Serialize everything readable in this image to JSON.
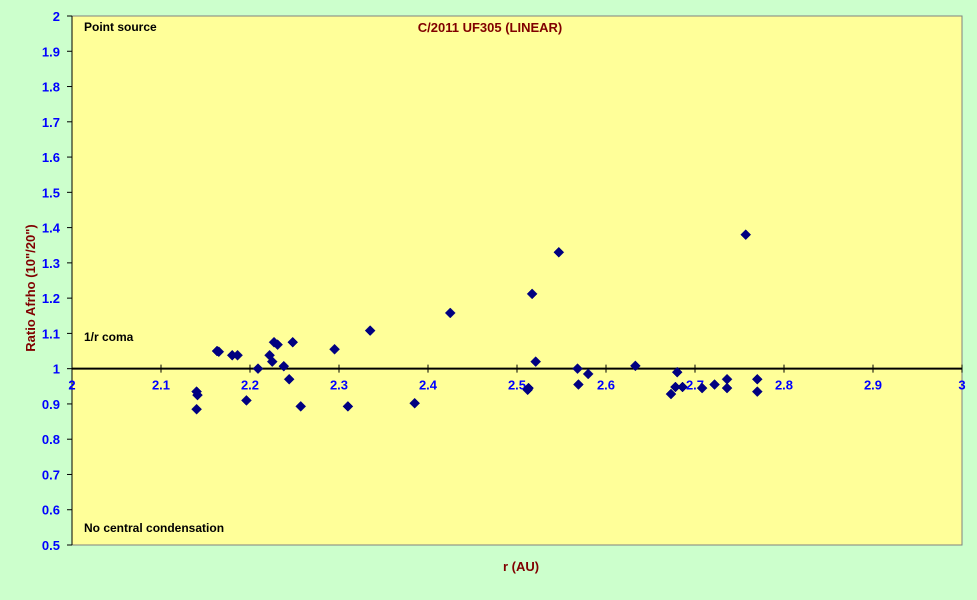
{
  "chart_data": {
    "type": "scatter",
    "title": "C/2011 UF305 (LINEAR)",
    "xlabel": "r (AU)",
    "ylabel": "Ratio Afrho (10\"/20\")",
    "xlim": [
      2,
      3
    ],
    "ylim": [
      0.5,
      2
    ],
    "x_ticks": [
      "2",
      "2.1",
      "2.2",
      "2.3",
      "2.4",
      "2.5",
      "2.6",
      "2.7",
      "2.8",
      "2.9",
      "3"
    ],
    "y_ticks": [
      "2",
      "1.9",
      "1.8",
      "1.7",
      "1.6",
      "1.5",
      "1.4",
      "1.3",
      "1.2",
      "1.1",
      "1",
      "0.9",
      "0.8",
      "0.7",
      "0.6",
      "0.5"
    ],
    "reference_line_y": 1,
    "annotations": {
      "top": "Point source",
      "middle": "1/r coma",
      "bottom": "No central condensation"
    },
    "colors": {
      "plot_bg": "#ffff99",
      "outer_bg": "#ccffcc",
      "marker": "#000080",
      "tick": "#0000ff",
      "title": "#800000"
    },
    "grid": false,
    "points": [
      [
        2.14,
        0.935
      ],
      [
        2.141,
        0.925
      ],
      [
        2.14,
        0.885
      ],
      [
        2.163,
        1.05
      ],
      [
        2.165,
        1.048
      ],
      [
        2.18,
        1.038
      ],
      [
        2.186,
        1.038
      ],
      [
        2.196,
        0.91
      ],
      [
        2.209,
        1.0
      ],
      [
        2.222,
        1.038
      ],
      [
        2.225,
        1.02
      ],
      [
        2.227,
        1.075
      ],
      [
        2.231,
        1.068
      ],
      [
        2.238,
        1.007
      ],
      [
        2.244,
        0.97
      ],
      [
        2.248,
        1.075
      ],
      [
        2.257,
        0.893
      ],
      [
        2.295,
        1.055
      ],
      [
        2.31,
        0.893
      ],
      [
        2.335,
        1.108
      ],
      [
        2.385,
        0.902
      ],
      [
        2.425,
        1.158
      ],
      [
        2.513,
        0.945
      ],
      [
        2.512,
        0.94
      ],
      [
        2.517,
        1.212
      ],
      [
        2.521,
        1.02
      ],
      [
        2.547,
        1.33
      ],
      [
        2.568,
        1.0
      ],
      [
        2.569,
        0.955
      ],
      [
        2.58,
        0.985
      ],
      [
        2.633,
        1.008
      ],
      [
        2.673,
        0.928
      ],
      [
        2.678,
        0.948
      ],
      [
        2.68,
        0.99
      ],
      [
        2.686,
        0.948
      ],
      [
        2.708,
        0.945
      ],
      [
        2.722,
        0.955
      ],
      [
        2.736,
        0.97
      ],
      [
        2.736,
        0.945
      ],
      [
        2.757,
        1.38
      ],
      [
        2.77,
        0.97
      ],
      [
        2.77,
        0.935
      ]
    ]
  }
}
